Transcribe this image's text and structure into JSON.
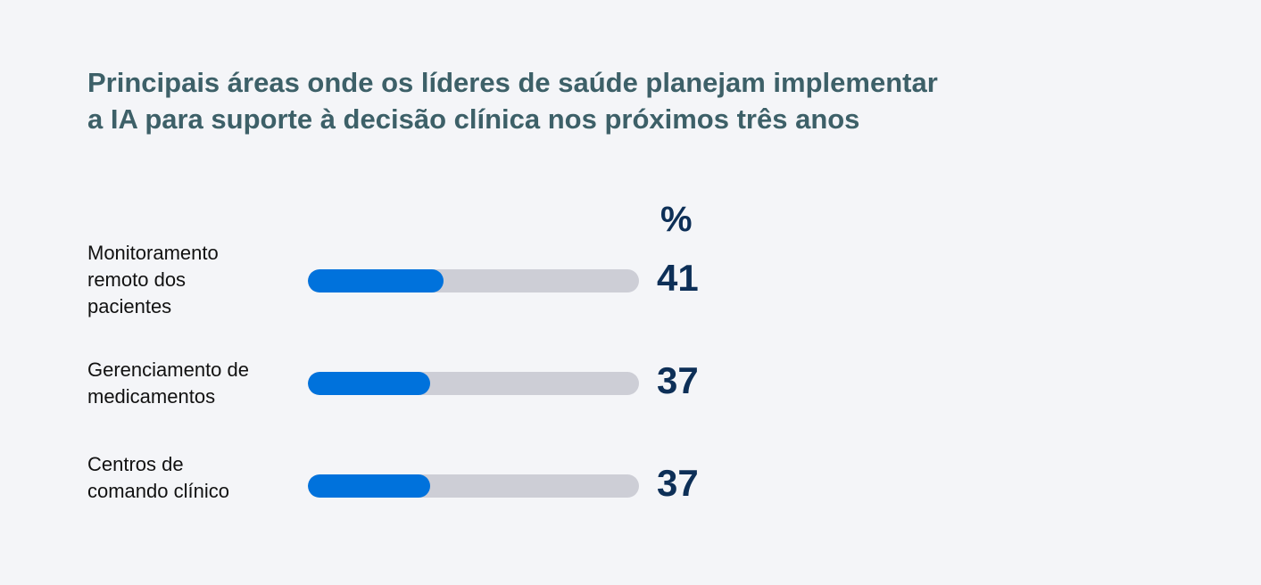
{
  "chart_data": {
    "type": "bar",
    "orientation": "horizontal",
    "title_lines": [
      "Principais áreas onde os líderes de saúde planejam implementar",
      "a IA para suporte à decisão clínica nos próximos três anos"
    ],
    "unit_label": "%",
    "categories": [
      {
        "label_lines": [
          "Monitoramento",
          "remoto dos",
          "pacientes"
        ],
        "value": 41,
        "value_label": "41"
      },
      {
        "label_lines": [
          "Gerenciamento de",
          "medicamentos"
        ],
        "value": 37,
        "value_label": "37"
      },
      {
        "label_lines": [
          "Centros de",
          "comando clínico"
        ],
        "value": 37,
        "value_label": "37"
      }
    ],
    "xlim": [
      0,
      100
    ],
    "colors": {
      "bar_fill": "#0072dc",
      "bar_track": "#cdced6",
      "title": "#3d6068",
      "value_text": "#0d2f57",
      "background": "#f4f5f8"
    }
  }
}
